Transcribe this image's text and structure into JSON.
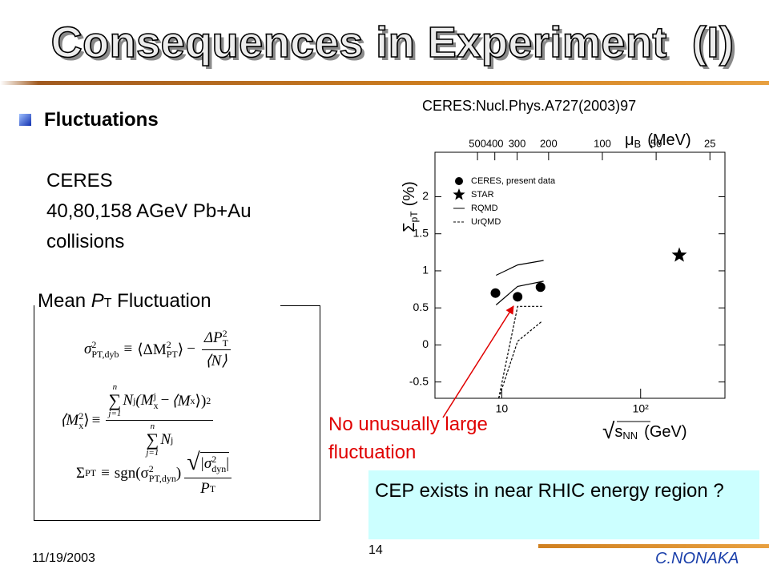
{
  "title": "Consequences in Experiment  (I)",
  "bullet": "Fluctuations",
  "ceres_text": [
    "CERES",
    "40,80,158 AGeV Pb+Au",
    "collisions"
  ],
  "box_label": {
    "before": "Mean ",
    "symbol": "P",
    "sub": "T",
    "after": " Fluctuation"
  },
  "formulas": [
    [
      "σ",
      "2",
      "PT,dyb",
      "≡",
      "⟨ΔM",
      "2",
      "PT",
      "⟩",
      "−",
      "ΔP",
      "2",
      "T",
      "⟨N⟩"
    ],
    [
      "⟨M",
      "2",
      "x",
      "⟩",
      "≡",
      "n",
      "∑",
      "j=1",
      "N",
      "j",
      "(M",
      "j",
      "x",
      "−",
      "⟨M",
      "x",
      "⟩)",
      "2",
      "n",
      "∑",
      "j=1",
      "N",
      "j"
    ],
    [
      "Σ",
      "PT",
      "≡",
      "sgn(σ",
      "2",
      "PT,dyn",
      ")",
      "√",
      "|σ",
      "2",
      "dyn",
      "|",
      "P",
      "T"
    ]
  ],
  "reference": "CERES:Nucl.Phys.A727(2003)97",
  "annotation": "No unusually large fluctuation",
  "callout": "CEP exists in near RHIC energy region ?",
  "footer": {
    "date": "11/19/2003",
    "page": "14",
    "author": "C.NONAKA"
  },
  "chart_data": {
    "type": "scatter",
    "y_label": {
      "main": "Σ",
      "sub": "pT",
      "unit": "(%)"
    },
    "x_label": {
      "root": "√",
      "main": "s",
      "sub": "NN",
      "unit": "(GeV)"
    },
    "x2_label": {
      "main": "μ",
      "sub": "B",
      "unit": "(MeV)"
    },
    "xlog": true,
    "xlim": [
      3.3,
      405
    ],
    "xticks": [
      10,
      {
        "value": 100,
        "label": "10²"
      }
    ],
    "x2log": true,
    "x2lim": [
      865,
      20.6
    ],
    "x2ticks": [
      500,
      400,
      300,
      200,
      100,
      50,
      25
    ],
    "ylim": [
      -0.72,
      2.6
    ],
    "yticks": [
      -0.5,
      0,
      0.5,
      1,
      1.5,
      2
    ],
    "series": [
      {
        "name": "CERES, present data",
        "marker": "circle",
        "color": "#000000",
        "x": [
          9,
          13,
          19
        ],
        "values": [
          0.7,
          0.65,
          0.78
        ]
      },
      {
        "name": "STAR",
        "marker": "star",
        "color": "#000000",
        "x": [
          190
        ],
        "values": [
          1.21
        ]
      },
      {
        "name": "RQMD",
        "line": "solid",
        "color": "#000000",
        "x": [
          9.1,
          13,
          20
        ],
        "values": [
          0.94,
          1.08,
          1.14
        ],
        "values_low": [
          0.54,
          0.79,
          0.86
        ]
      },
      {
        "name": "UrQMD",
        "line": "dashed",
        "color": "#000000",
        "x": [
          9.5,
          13,
          19.5
        ],
        "values": [
          -0.72,
          0.52,
          0.52
        ],
        "values_low": [
          -0.72,
          0.05,
          0.32
        ]
      }
    ]
  }
}
